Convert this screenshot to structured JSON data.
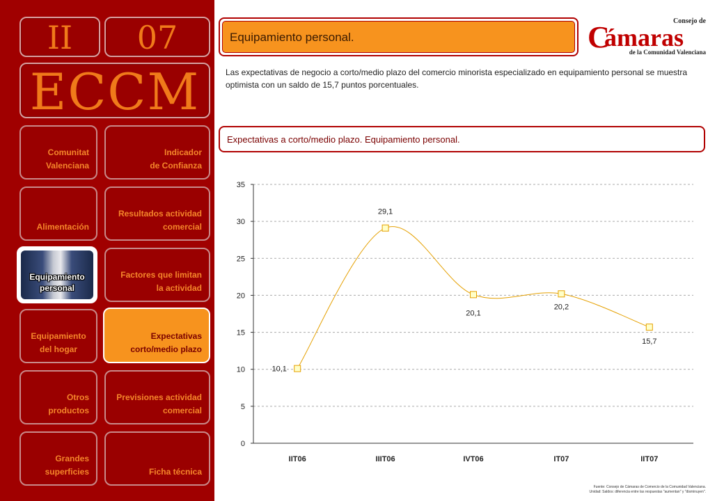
{
  "sidebar": {
    "section_number": "II",
    "page_number": "07",
    "acronym": "ECCM",
    "nav": [
      {
        "key": "comunitat",
        "line1": "Comunitat",
        "line2": "Valenciana"
      },
      {
        "key": "indicador",
        "line1": "Indicador",
        "line2": "de Confianza"
      },
      {
        "key": "alimentacion",
        "line1": "Alimentación",
        "line2": ""
      },
      {
        "key": "resultados",
        "line1": "Resultados actividad",
        "line2": "comercial"
      },
      {
        "key": "equip-personal",
        "line1": "Equipamiento",
        "line2": "personal"
      },
      {
        "key": "factores",
        "line1": "Factores que limitan",
        "line2": "la actividad"
      },
      {
        "key": "equip-hogar",
        "line1": "Equipamiento",
        "line2": "del hogar"
      },
      {
        "key": "expectativas",
        "line1": "Expectativas",
        "line2": "corto/medio plazo"
      },
      {
        "key": "otros",
        "line1": "Otros",
        "line2": "productos"
      },
      {
        "key": "previsiones",
        "line1": "Previsiones actividad",
        "line2": "comercial"
      },
      {
        "key": "grandes",
        "line1": "Grandes",
        "line2": "superficies"
      },
      {
        "key": "ficha",
        "line1": "Ficha técnica",
        "line2": ""
      }
    ]
  },
  "header": {
    "title": "Equipamiento personal.",
    "description": "Las expectativas de negocio a corto/medio plazo del comercio minorista especializado en  equipamiento personal se muestra optimista con un saldo de 15,7 puntos porcentuales.",
    "chart_title": "Expectativas a corto/medio plazo. Equipamiento personal."
  },
  "logo": {
    "line1": "Consejo de",
    "main": "ámaras",
    "letter": "C",
    "line2": "de la Comunidad Valenciana"
  },
  "footer": {
    "line1": "Fuente: Consejo de Cámaras de Comercio de la Comunidad Valenciana.",
    "line2": "Unidad: Saldos: diferencia entre las respuestas \"aumentan\" y \"disminuyen\"."
  },
  "colors": {
    "sidebar": "#a00000",
    "accent": "#f7931e",
    "line": "#e5a000",
    "marker_fill": "#ffffc8"
  },
  "chart_data": {
    "type": "line",
    "categories": [
      "IIT06",
      "IIIT06",
      "IVT06",
      "IT07",
      "IIT07"
    ],
    "values": [
      10.1,
      29.1,
      20.1,
      20.2,
      15.7
    ],
    "data_labels": [
      "10,1",
      "29,1",
      "20,1",
      "20,2",
      "15,7"
    ],
    "ylim": [
      0,
      35
    ],
    "yticks": [
      0,
      5,
      10,
      15,
      20,
      25,
      30,
      35
    ],
    "grid": true,
    "smooth": true,
    "title": "",
    "xlabel": "",
    "ylabel": ""
  }
}
